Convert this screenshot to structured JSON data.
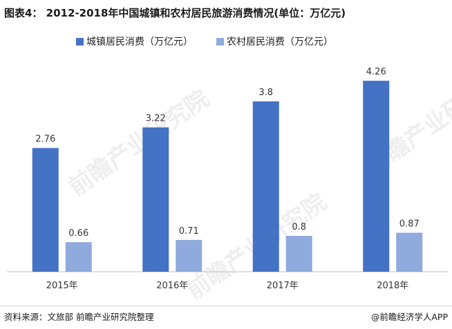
{
  "header": {
    "title": "图表4： 2012-2018年中国城镇和农村居民旅游消费情况(单位：万亿元)"
  },
  "footer": {
    "source": "资料来源：文旅部 前瞻产业研究院整理",
    "credit": "@前瞻经济学人APP"
  },
  "watermark": {
    "text": "前瞻产业研究院"
  },
  "chart_data": {
    "type": "bar",
    "title": "图表4： 2012-2018年中国城镇和农村居民旅游消费情况(单位：万亿元)",
    "categories": [
      "2015年",
      "2016年",
      "2017年",
      "2018年"
    ],
    "series": [
      {
        "name": "城镇居民消费（万亿元）",
        "values": [
          2.76,
          3.22,
          3.8,
          4.26
        ],
        "color": "#4472c4"
      },
      {
        "name": "农村居民消费（万亿元）",
        "values": [
          0.66,
          0.71,
          0.8,
          0.87
        ],
        "color": "#8faadc"
      }
    ],
    "ylim": [
      0,
      4.8
    ],
    "grid": false,
    "legend": "top-left",
    "data_labels": true
  }
}
